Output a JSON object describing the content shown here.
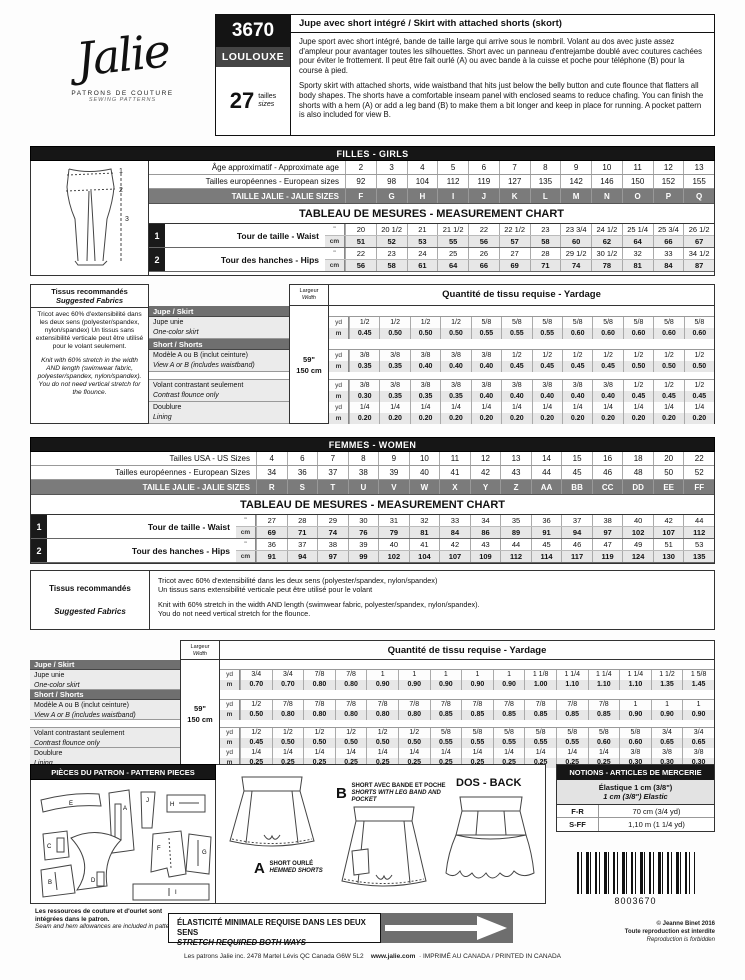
{
  "header": {
    "logo": "Jalie",
    "logo_sub1": "PATRONS DE COUTURE",
    "logo_sub2": "SEWING PATTERNS",
    "code": "3670",
    "name": "LOULOUXE",
    "sizes_count": "27",
    "sizes_fr": "tailles",
    "sizes_en": "sizes",
    "title": "Jupe avec short intégré / Skirt with attached shorts (skort)",
    "desc_fr": "Jupe sport avec short intégré, bande de taille large qui arrive sous le nombril. Volant au dos avec juste assez d'ampleur pour avantager toutes les silhouettes. Short avec un panneau d'entrejambe doublé avec coutures cachées pour éviter le frottement. Il peut être fait ourlé (A) ou avec bande à la cuisse et poche pour téléphone (B) pour la course à pied.",
    "desc_en": "Sporty skirt with attached shorts, wide waistband that hits just below the belly button and cute flounce that flatters all body shapes. The shorts have a comfortable inseam panel with enclosed seams to reduce chafing. You can finish the shorts with a hem (A) or add a leg band (B) to make them a bit longer and keep in place for running. A pocket pattern is also included for view B."
  },
  "units": {
    "inch": "\"",
    "cm": "cm",
    "yd": "yd",
    "m": "m"
  },
  "figure": {
    "marks": [
      "1",
      "2",
      "3"
    ]
  },
  "girls": {
    "banner": "FILLES - GIRLS",
    "age_label": "Âge approximatif - Approximate age",
    "ages": [
      "2",
      "3",
      "4",
      "5",
      "6",
      "7",
      "8",
      "9",
      "10",
      "11",
      "12",
      "13"
    ],
    "euro_label": "Tailles européennes - European sizes",
    "euros": [
      "92",
      "98",
      "104",
      "112",
      "119",
      "127",
      "135",
      "142",
      "146",
      "150",
      "152",
      "155"
    ],
    "jalie_label": "TAILLE JALIE - JALIE SIZES",
    "jalie": [
      "F",
      "G",
      "H",
      "I",
      "J",
      "K",
      "L",
      "M",
      "N",
      "O",
      "P",
      "Q"
    ],
    "chart_title": "TABLEAU DE MESURES - MEASUREMENT CHART",
    "waist": {
      "num": "1",
      "label": "Tour de taille - Waist",
      "in": [
        "20",
        "20 1/2",
        "21",
        "21 1/2",
        "22",
        "22 1/2",
        "23",
        "23 3/4",
        "24 1/2",
        "25 1/4",
        "25 3/4",
        "26 1/2"
      ],
      "cm": [
        "51",
        "52",
        "53",
        "55",
        "56",
        "57",
        "58",
        "60",
        "62",
        "64",
        "66",
        "67"
      ]
    },
    "hips": {
      "num": "2",
      "label": "Tour des hanches - Hips",
      "in": [
        "22",
        "23",
        "24",
        "25",
        "26",
        "27",
        "28",
        "29 1/2",
        "30 1/2",
        "32",
        "33",
        "34 1/2"
      ],
      "cm": [
        "56",
        "58",
        "61",
        "64",
        "66",
        "69",
        "71",
        "74",
        "78",
        "81",
        "84",
        "87"
      ]
    }
  },
  "girls_yardage": {
    "fabrics_title_fr": "Tissus recommandés",
    "fabrics_title_en": "Suggested Fabrics",
    "fabrics_fr": "Tricot avec 60% d'extensibilité dans les deux sens (polyester/spandex, nylon/spandex) Un tissus sans extensibilité verticale peut être utilisé pour le volant seulement.",
    "fabrics_en": "Knit with 60% stretch in the width AND length (swimwear fabric, polyester/spandex, nylon/spandex). You do not need vertical stretch for the flounce.",
    "width_label_fr": "Largeur",
    "width_label_en": "Width",
    "width_in": "59\"",
    "width_cm": "150 cm",
    "title": "Quantité de tissu requise - Yardage",
    "group_skirt": "Jupe / Skirt",
    "group_shorts": "Short / Shorts",
    "rows": {
      "skirt": {
        "fr": "Jupe unie",
        "en": "One-color skirt",
        "yd": [
          "1/2",
          "1/2",
          "1/2",
          "1/2",
          "5/8",
          "5/8",
          "5/8",
          "5/8",
          "5/8",
          "5/8",
          "5/8",
          "5/8"
        ],
        "m": [
          "0.45",
          "0.50",
          "0.50",
          "0.50",
          "0.55",
          "0.55",
          "0.55",
          "0.60",
          "0.60",
          "0.60",
          "0.60",
          "0.60"
        ]
      },
      "shorts": {
        "fr": "Modèle A ou B (inclut ceinture)",
        "en": "View A or B (includes waistband)",
        "yd": [
          "3/8",
          "3/8",
          "3/8",
          "3/8",
          "3/8",
          "1/2",
          "1/2",
          "1/2",
          "1/2",
          "1/2",
          "1/2",
          "1/2"
        ],
        "m": [
          "0.35",
          "0.35",
          "0.40",
          "0.40",
          "0.40",
          "0.45",
          "0.45",
          "0.45",
          "0.45",
          "0.50",
          "0.50",
          "0.50"
        ]
      },
      "flounce": {
        "fr": "Volant contrastant seulement",
        "en": "Contrast flounce only",
        "yd": [
          "3/8",
          "3/8",
          "3/8",
          "3/8",
          "3/8",
          "3/8",
          "3/8",
          "3/8",
          "3/8",
          "1/2",
          "1/2",
          "1/2"
        ],
        "m": [
          "0.30",
          "0.35",
          "0.35",
          "0.35",
          "0.40",
          "0.40",
          "0.40",
          "0.40",
          "0.40",
          "0.45",
          "0.45",
          "0.45"
        ]
      },
      "lining": {
        "fr": "Doublure",
        "en": "Lining",
        "yd": [
          "1/4",
          "1/4",
          "1/4",
          "1/4",
          "1/4",
          "1/4",
          "1/4",
          "1/4",
          "1/4",
          "1/4",
          "1/4",
          "1/4"
        ],
        "m": [
          "0.20",
          "0.20",
          "0.20",
          "0.20",
          "0.20",
          "0.20",
          "0.20",
          "0.20",
          "0.20",
          "0.20",
          "0.20",
          "0.20"
        ]
      }
    }
  },
  "women": {
    "banner": "FEMMES - WOMEN",
    "us_label": "Tailles USA - US Sizes",
    "us": [
      "4",
      "6",
      "7",
      "8",
      "9",
      "10",
      "11",
      "12",
      "13",
      "14",
      "15",
      "16",
      "18",
      "20",
      "22"
    ],
    "euro_label": "Tailles européennes - European Sizes",
    "euros": [
      "34",
      "36",
      "37",
      "38",
      "39",
      "40",
      "41",
      "42",
      "43",
      "44",
      "45",
      "46",
      "48",
      "50",
      "52"
    ],
    "jalie_label": "TAILLE JALIE - JALIE SIZES",
    "jalie": [
      "R",
      "S",
      "T",
      "U",
      "V",
      "W",
      "X",
      "Y",
      "Z",
      "AA",
      "BB",
      "CC",
      "DD",
      "EE",
      "FF"
    ],
    "chart_title": "TABLEAU DE MESURES - MEASUREMENT CHART",
    "waist": {
      "num": "1",
      "label": "Tour de taille - Waist",
      "in": [
        "27",
        "28",
        "29",
        "30",
        "31",
        "32",
        "33",
        "34",
        "35",
        "36",
        "37",
        "38",
        "40",
        "42",
        "44"
      ],
      "cm": [
        "69",
        "71",
        "74",
        "76",
        "79",
        "81",
        "84",
        "86",
        "89",
        "91",
        "94",
        "97",
        "102",
        "107",
        "112"
      ]
    },
    "hips": {
      "num": "2",
      "label": "Tour des hanches - Hips",
      "in": [
        "36",
        "37",
        "38",
        "39",
        "40",
        "41",
        "42",
        "43",
        "44",
        "45",
        "46",
        "47",
        "49",
        "51",
        "53"
      ],
      "cm": [
        "91",
        "94",
        "97",
        "99",
        "102",
        "104",
        "107",
        "109",
        "112",
        "114",
        "117",
        "119",
        "124",
        "130",
        "135"
      ]
    }
  },
  "women_fabrics": {
    "title_fr": "Tissus recommandés",
    "title_en": "Suggested Fabrics",
    "fr1": "Tricot avec 60% d'extensibilité dans les deux sens (polyester/spandex, nylon/spandex)",
    "fr2": "Un tissus sans extensibilité verticale peut être utilisé pour le volant",
    "en1": "Knit with 60% stretch in the width AND length (swimwear fabric, polyester/spandex, nylon/spandex).",
    "en2": "You do not need vertical stretch for the flounce."
  },
  "women_yardage": {
    "width_label_fr": "Largeur",
    "width_label_en": "Width",
    "width_in": "59\"",
    "width_cm": "150 cm",
    "title": "Quantité de tissu requise - Yardage",
    "group_skirt": "Jupe / Skirt",
    "group_shorts": "Short / Shorts",
    "rows": {
      "skirt": {
        "fr": "Jupe unie",
        "en": "One-color skirt",
        "yd": [
          "3/4",
          "3/4",
          "7/8",
          "7/8",
          "1",
          "1",
          "1",
          "1",
          "1",
          "1 1/8",
          "1 1/4",
          "1 1/4",
          "1 1/4",
          "1 1/2",
          "1 5/8"
        ],
        "m": [
          "0.70",
          "0.70",
          "0.80",
          "0.80",
          "0.90",
          "0.90",
          "0.90",
          "0.90",
          "0.90",
          "1.00",
          "1.10",
          "1.10",
          "1.10",
          "1.35",
          "1.45"
        ]
      },
      "shorts": {
        "fr": "Modèle A ou B (inclut ceinture)",
        "en": "View A or B (includes waistband)",
        "yd": [
          "1/2",
          "7/8",
          "7/8",
          "7/8",
          "7/8",
          "7/8",
          "7/8",
          "7/8",
          "7/8",
          "7/8",
          "7/8",
          "7/8",
          "1",
          "1",
          "1"
        ],
        "m": [
          "0.50",
          "0.80",
          "0.80",
          "0.80",
          "0.80",
          "0.80",
          "0.85",
          "0.85",
          "0.85",
          "0.85",
          "0.85",
          "0.85",
          "0.90",
          "0.90",
          "0.90"
        ]
      },
      "flounce": {
        "fr": "Volant contrastant seulement",
        "en": "Contrast flounce only",
        "yd": [
          "1/2",
          "1/2",
          "1/2",
          "1/2",
          "1/2",
          "1/2",
          "5/8",
          "5/8",
          "5/8",
          "5/8",
          "5/8",
          "5/8",
          "5/8",
          "3/4",
          "3/4"
        ],
        "m": [
          "0.45",
          "0.50",
          "0.50",
          "0.50",
          "0.50",
          "0.50",
          "0.55",
          "0.55",
          "0.55",
          "0.55",
          "0.55",
          "0.60",
          "0.60",
          "0.65",
          "0.65"
        ]
      },
      "lining": {
        "fr": "Doublure",
        "en": "Lining",
        "yd": [
          "1/4",
          "1/4",
          "1/4",
          "1/4",
          "1/4",
          "1/4",
          "1/4",
          "1/4",
          "1/4",
          "1/4",
          "1/4",
          "1/4",
          "3/8",
          "3/8",
          "3/8"
        ],
        "m": [
          "0.25",
          "0.25",
          "0.25",
          "0.25",
          "0.25",
          "0.25",
          "0.25",
          "0.25",
          "0.25",
          "0.25",
          "0.25",
          "0.25",
          "0.30",
          "0.30",
          "0.30"
        ]
      }
    }
  },
  "pieces": {
    "header": "PIÈCES DU PATRON - PATTERN PIECES",
    "letters": [
      "A",
      "B",
      "C",
      "D",
      "E",
      "F",
      "G",
      "H",
      "I",
      "J"
    ]
  },
  "views": {
    "a_letter": "A",
    "a_fr": "SHORT OURLÉ",
    "a_en": "HEMMED SHORTS",
    "b_letter": "B",
    "b_fr": "SHORT AVEC BANDE ET POCHE",
    "b_en": "SHORTS WITH LEG BAND AND POCKET",
    "back": "DOS - BACK"
  },
  "notions": {
    "header": "NOTIONS - ARTICLES DE MERCERIE",
    "elastic_fr": "Élastique 1 cm (3/8\")",
    "elastic_en": "1 cm (3/8\") Elastic",
    "rows": [
      {
        "size": "F-R",
        "qty": "70 cm (3/4 yd)"
      },
      {
        "size": "S-FF",
        "qty": "1,10 m (1 1/4 yd)"
      }
    ],
    "barcode": "8003670"
  },
  "copyright": {
    "line1": "© Jeanne Binet 2016",
    "line2": "Toute reproduction est interdite",
    "line3": "Reproduction is forbidden"
  },
  "allowances": {
    "fr": "Les ressources de couture et d'ourlet sont intégrées dans le patron.",
    "en": "Seam and hem allowances are included in pattern."
  },
  "stretch": {
    "fr": "ÉLASTICITÉ MINIMALE REQUISE DANS LES DEUX SENS",
    "en": "STRETCH REQUIRED BOTH WAYS"
  },
  "footer": {
    "address": "Les patrons Jalie inc.  2478 Martel  Lévis  QC  Canada  G6W 5L2",
    "site": "www.jalie.com",
    "printed": "·  IMPRIMÉ AU CANADA / PRINTED IN CANADA"
  }
}
